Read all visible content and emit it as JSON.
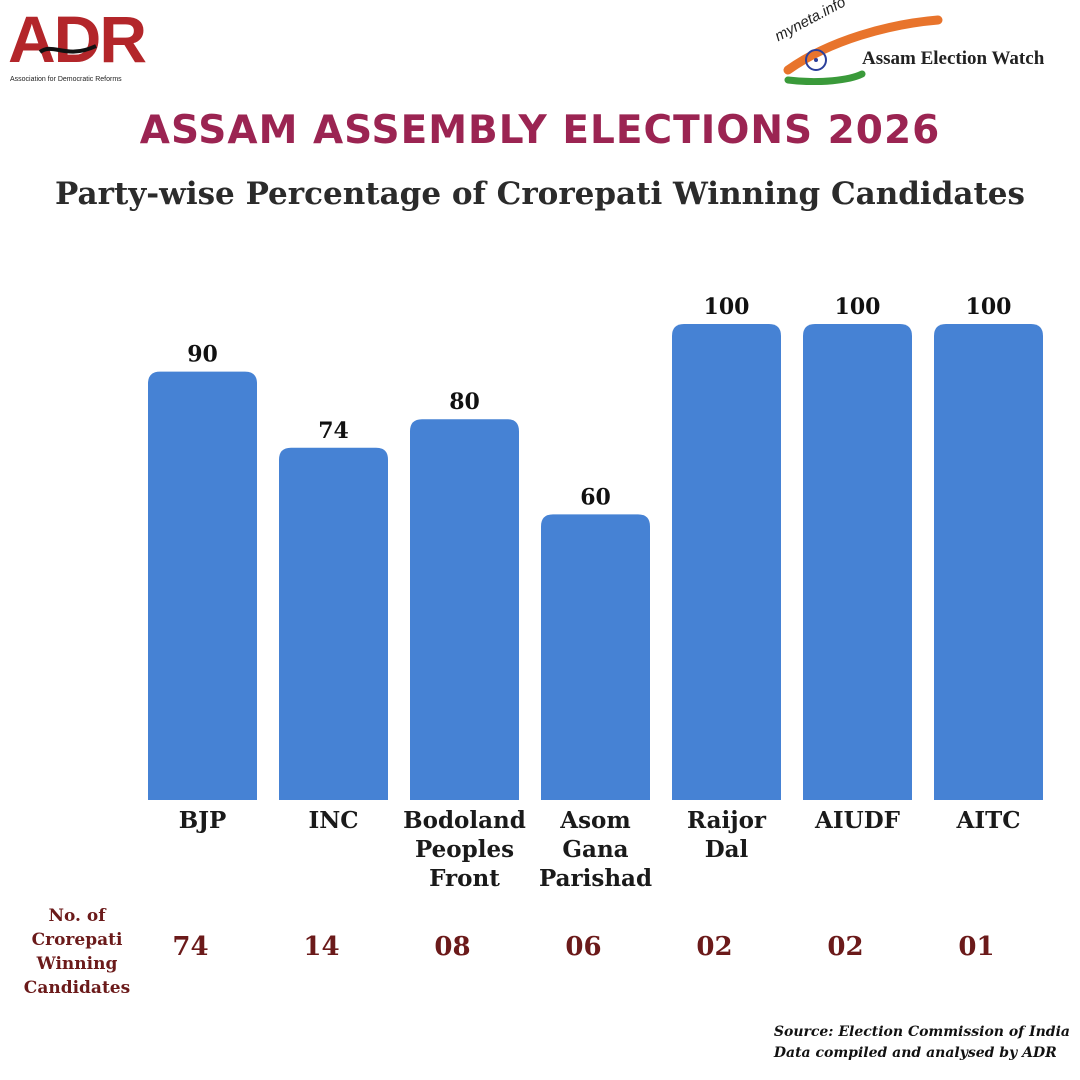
{
  "logos": {
    "adr_letters": "ADR",
    "adr_tagline": "Association for Democratic Reforms",
    "myneta_text": "myneta.info",
    "watch_text": "Assam Election Watch"
  },
  "header": {
    "title": "ASSAM ASSEMBLY ELECTIONS 2026",
    "subtitle": "Party-wise Percentage of Crorepati Winning Candidates"
  },
  "chart_data": {
    "type": "bar",
    "title": "Party-wise Percentage of Crorepati Winning Candidates",
    "categories": [
      "BJP",
      "INC",
      "Bodoland Peoples Front",
      "Asom Gana Parishad",
      "Raijor Dal",
      "AIUDF",
      "AITC"
    ],
    "category_lines": [
      [
        "BJP"
      ],
      [
        "INC"
      ],
      [
        "Bodoland",
        "Peoples",
        "Front"
      ],
      [
        "Asom",
        "Gana",
        "Parishad"
      ],
      [
        "Raijor",
        "Dal"
      ],
      [
        "AIUDF"
      ],
      [
        "AITC"
      ]
    ],
    "values": [
      90,
      74,
      80,
      60,
      100,
      100,
      100
    ],
    "value_labels": [
      "90",
      "74",
      "80",
      "60",
      "100",
      "100",
      "100"
    ],
    "ylim": [
      0,
      100
    ],
    "grid": false,
    "bar_color": "#4682d4"
  },
  "counts": {
    "header": [
      "No. of",
      "Crorepati",
      "Winning",
      "Candidates"
    ],
    "values": [
      "74",
      "14",
      "08",
      "06",
      "02",
      "02",
      "01"
    ]
  },
  "source": {
    "line1": "Source: Election Commission of India",
    "line2": "Data compiled and analysed by ADR"
  },
  "colors": {
    "title": "#9b2452",
    "counts": "#6b1a1a",
    "bar": "#4682d4"
  }
}
